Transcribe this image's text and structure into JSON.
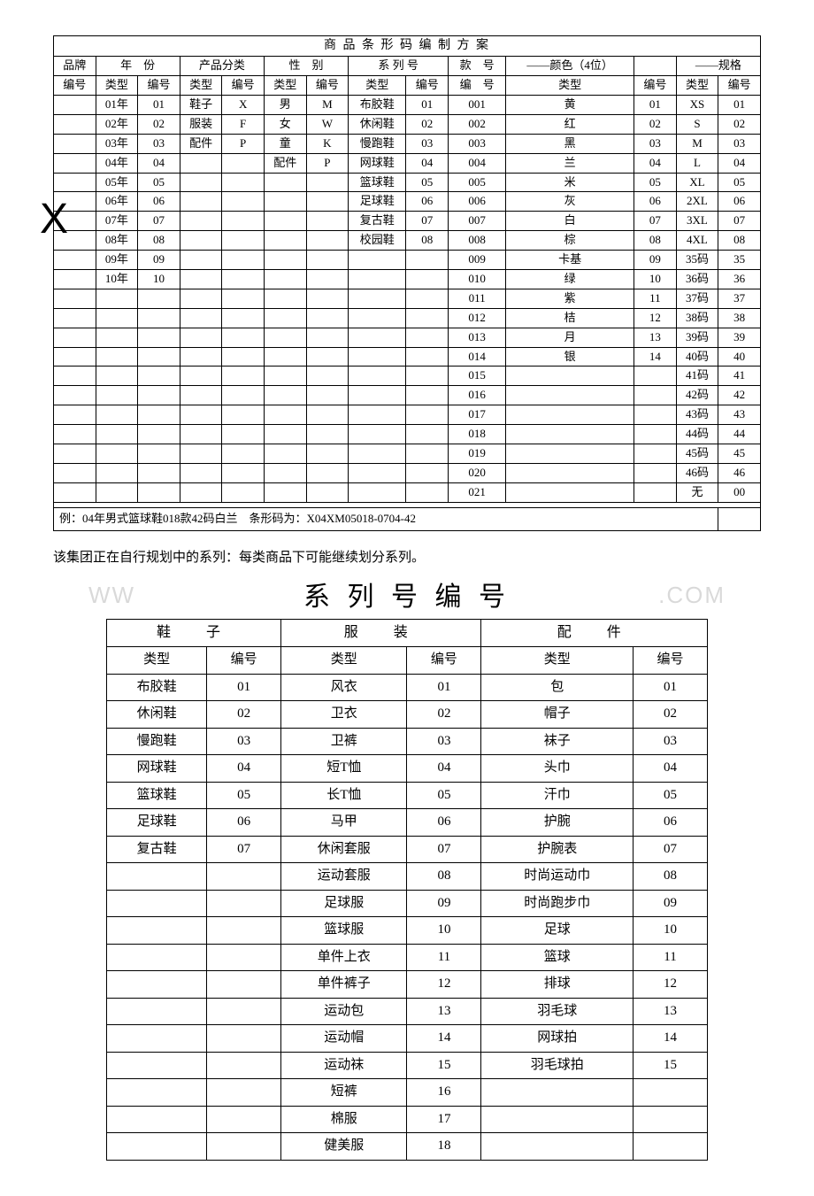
{
  "table1": {
    "title": "商 品 条 形 码 编 制 方 案",
    "groupHeaders": [
      "品牌",
      "年　份",
      "产品分类",
      "性　别",
      "系 列 号",
      "款　号",
      "颜色（4位）",
      "规格"
    ],
    "dashPrefix": "——",
    "dashSuffix": "——",
    "subHeaders": [
      "编号",
      "类型",
      "编号",
      "类型",
      "编号",
      "类型",
      "编号",
      "类型",
      "编号",
      "编　号",
      "类型",
      "编号",
      "类型",
      "编号"
    ],
    "rows": [
      [
        "",
        "01年",
        "01",
        "鞋子",
        "X",
        "男",
        "M",
        "布胶鞋",
        "01",
        "001",
        "黄",
        "01",
        "XS",
        "01"
      ],
      [
        "",
        "02年",
        "02",
        "服装",
        "F",
        "女",
        "W",
        "休闲鞋",
        "02",
        "002",
        "红",
        "02",
        "S",
        "02"
      ],
      [
        "",
        "03年",
        "03",
        "配件",
        "P",
        "童",
        "K",
        "慢跑鞋",
        "03",
        "003",
        "黑",
        "03",
        "M",
        "03"
      ],
      [
        "",
        "04年",
        "04",
        "",
        "",
        "配件",
        "P",
        "网球鞋",
        "04",
        "004",
        "兰",
        "04",
        "L",
        "04"
      ],
      [
        "",
        "05年",
        "05",
        "",
        "",
        "",
        "",
        "篮球鞋",
        "05",
        "005",
        "米",
        "05",
        "XL",
        "05"
      ],
      [
        "",
        "06年",
        "06",
        "",
        "",
        "",
        "",
        "足球鞋",
        "06",
        "006",
        "灰",
        "06",
        "2XL",
        "06"
      ],
      [
        "",
        "07年",
        "07",
        "",
        "",
        "",
        "",
        "复古鞋",
        "07",
        "007",
        "白",
        "07",
        "3XL",
        "07"
      ],
      [
        "",
        "08年",
        "08",
        "",
        "",
        "",
        "",
        "校园鞋",
        "08",
        "008",
        "棕",
        "08",
        "4XL",
        "08"
      ],
      [
        "",
        "09年",
        "09",
        "",
        "",
        "",
        "",
        "",
        "",
        "009",
        "卡基",
        "09",
        "35码",
        "35"
      ],
      [
        "",
        "10年",
        "10",
        "",
        "",
        "",
        "",
        "",
        "",
        "010",
        "绿",
        "10",
        "36码",
        "36"
      ],
      [
        "",
        "",
        "",
        "",
        "",
        "",
        "",
        "",
        "",
        "011",
        "紫",
        "11",
        "37码",
        "37"
      ],
      [
        "",
        "",
        "",
        "",
        "",
        "",
        "",
        "",
        "",
        "012",
        "桔",
        "12",
        "38码",
        "38"
      ],
      [
        "",
        "",
        "",
        "",
        "",
        "",
        "",
        "",
        "",
        "013",
        "月",
        "13",
        "39码",
        "39"
      ],
      [
        "",
        "",
        "",
        "",
        "",
        "",
        "",
        "",
        "",
        "014",
        "银",
        "14",
        "40码",
        "40"
      ],
      [
        "",
        "",
        "",
        "",
        "",
        "",
        "",
        "",
        "",
        "015",
        "",
        "",
        "41码",
        "41"
      ],
      [
        "",
        "",
        "",
        "",
        "",
        "",
        "",
        "",
        "",
        "016",
        "",
        "",
        "42码",
        "42"
      ],
      [
        "",
        "",
        "",
        "",
        "",
        "",
        "",
        "",
        "",
        "017",
        "",
        "",
        "43码",
        "43"
      ],
      [
        "",
        "",
        "",
        "",
        "",
        "",
        "",
        "",
        "",
        "018",
        "",
        "",
        "44码",
        "44"
      ],
      [
        "",
        "",
        "",
        "",
        "",
        "",
        "",
        "",
        "",
        "019",
        "",
        "",
        "45码",
        "45"
      ],
      [
        "",
        "",
        "",
        "",
        "",
        "",
        "",
        "",
        "",
        "020",
        "",
        "",
        "46码",
        "46"
      ],
      [
        "",
        "",
        "",
        "",
        "",
        "",
        "",
        "",
        "",
        "021",
        "",
        "",
        "无",
        "00"
      ]
    ],
    "example": "例：04年男式篮球鞋018款42码白兰　条形码为：X04XM05018-0704-42",
    "watermarkX": "X"
  },
  "paragraph": "该集团正在自行规划中的系列：每类商品下可能继续划分系列。",
  "seriesTitle": "系 列 号 编 号",
  "wmLeft": "WW",
  "wmRight": ".COM",
  "table2": {
    "groupHeaders": [
      "鞋　子",
      "服　装",
      "配　件"
    ],
    "subHeaders": [
      "类型",
      "编号",
      "类型",
      "编号",
      "类型",
      "编号"
    ],
    "rows": [
      [
        "布胶鞋",
        "01",
        "风衣",
        "01",
        "包",
        "01"
      ],
      [
        "休闲鞋",
        "02",
        "卫衣",
        "02",
        "帽子",
        "02"
      ],
      [
        "慢跑鞋",
        "03",
        "卫裤",
        "03",
        "袜子",
        "03"
      ],
      [
        "网球鞋",
        "04",
        "短T恤",
        "04",
        "头巾",
        "04"
      ],
      [
        "篮球鞋",
        "05",
        "长T恤",
        "05",
        "汗巾",
        "05"
      ],
      [
        "足球鞋",
        "06",
        "马甲",
        "06",
        "护腕",
        "06"
      ],
      [
        "复古鞋",
        "07",
        "休闲套服",
        "07",
        "护腕表",
        "07"
      ],
      [
        "",
        "",
        "运动套服",
        "08",
        "时尚运动巾",
        "08"
      ],
      [
        "",
        "",
        "足球服",
        "09",
        "时尚跑步巾",
        "09"
      ],
      [
        "",
        "",
        "篮球服",
        "10",
        "足球",
        "10"
      ],
      [
        "",
        "",
        "单件上衣",
        "11",
        "篮球",
        "11"
      ],
      [
        "",
        "",
        "单件裤子",
        "12",
        "排球",
        "12"
      ],
      [
        "",
        "",
        "运动包",
        "13",
        "羽毛球",
        "13"
      ],
      [
        "",
        "",
        "运动帽",
        "14",
        "网球拍",
        "14"
      ],
      [
        "",
        "",
        "运动袜",
        "15",
        "羽毛球拍",
        "15"
      ],
      [
        "",
        "",
        "短裤",
        "16",
        "",
        ""
      ],
      [
        "",
        "",
        "棉服",
        "17",
        "",
        ""
      ],
      [
        "",
        "",
        "健美服",
        "18",
        "",
        ""
      ]
    ]
  }
}
